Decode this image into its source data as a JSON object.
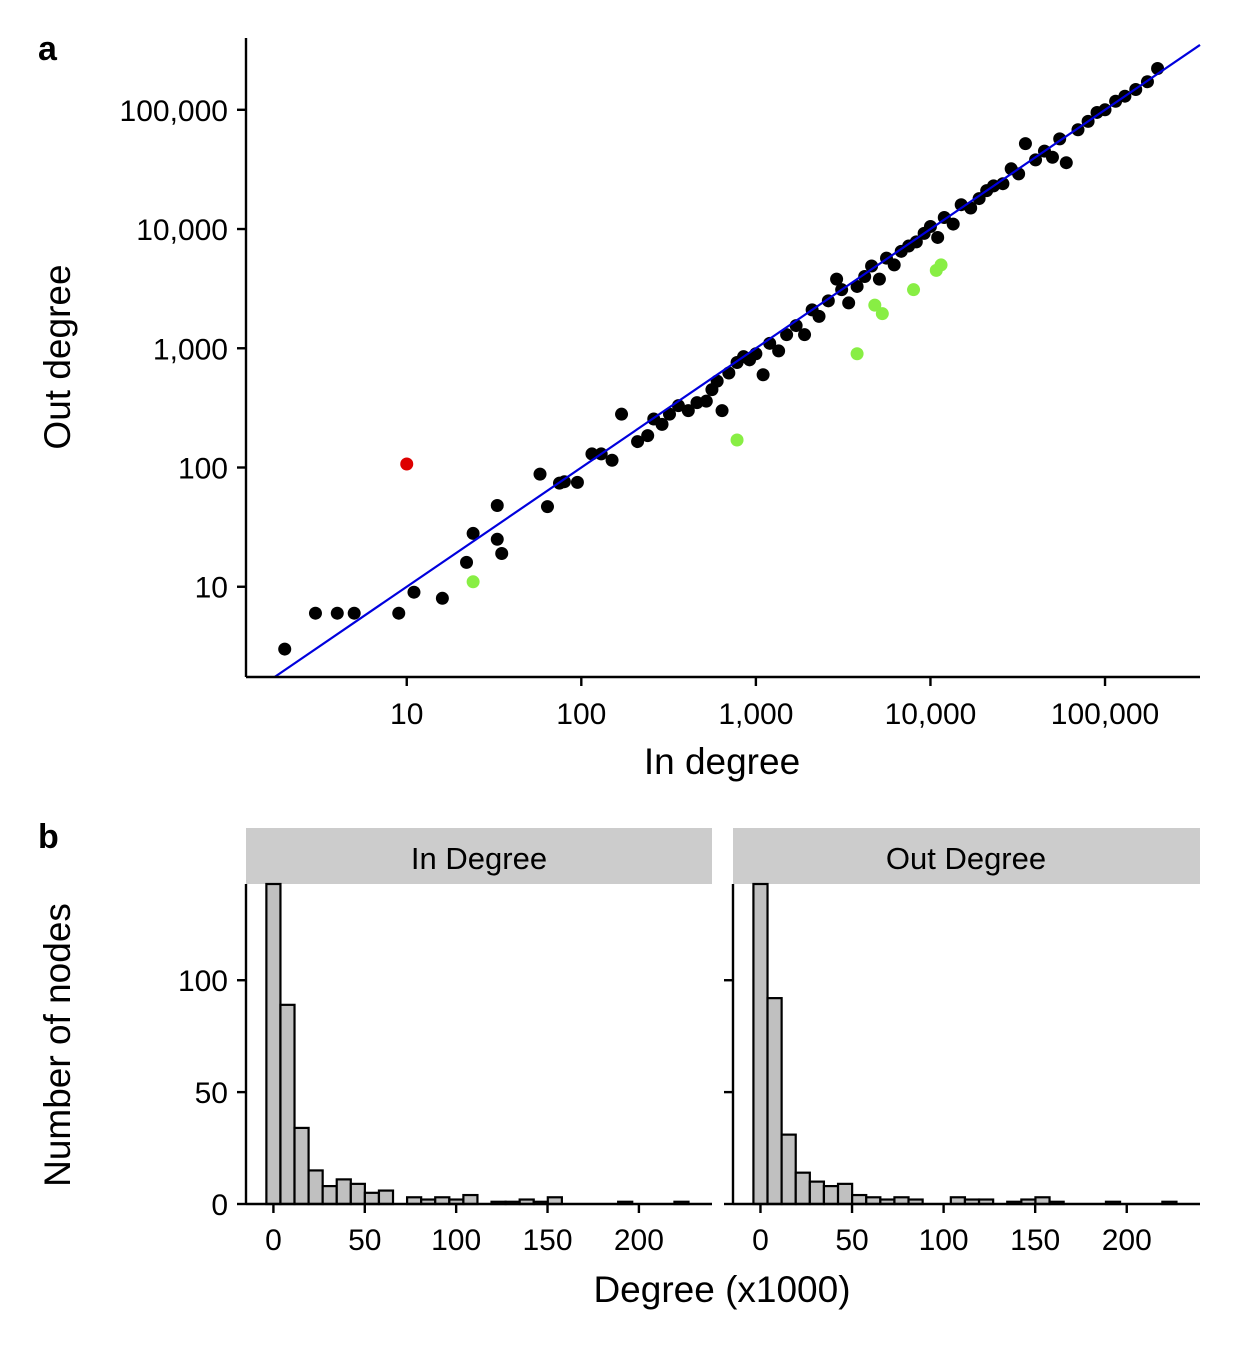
{
  "panels": {
    "a": {
      "label": "a"
    },
    "b": {
      "label": "b"
    }
  },
  "chart_data": [
    {
      "type": "scatter",
      "panel": "a",
      "xlabel": "In degree",
      "ylabel": "Out degree",
      "xscale": "log10",
      "yscale": "log10",
      "xlim": [
        1.2,
        350000
      ],
      "ylim": [
        1.75,
        400000
      ],
      "xticks": [
        10,
        100,
        1000,
        10000,
        100000
      ],
      "xtick_labels": [
        "10",
        "100",
        "1,000",
        "10,000",
        "100,000"
      ],
      "yticks": [
        10,
        100,
        1000,
        10000,
        100000
      ],
      "ytick_labels": [
        "10",
        "100",
        "1,000",
        "10,000",
        "100,000"
      ],
      "grid": false,
      "legend": "none",
      "fit_line": {
        "slope": 1,
        "intercept": 0,
        "color": "#0000dd"
      },
      "series": [
        {
          "color": "#000000",
          "points": [
            [
              2,
              3
            ],
            [
              3,
              6
            ],
            [
              4,
              6
            ],
            [
              5,
              6
            ],
            [
              9,
              6
            ],
            [
              11,
              9
            ],
            [
              16,
              8
            ],
            [
              22,
              16
            ],
            [
              24,
              28
            ],
            [
              33,
              48
            ],
            [
              33,
              25
            ],
            [
              35,
              19
            ],
            [
              58,
              88
            ],
            [
              64,
              47
            ],
            [
              75,
              74
            ],
            [
              80,
              76
            ],
            [
              95,
              75
            ],
            [
              115,
              130
            ],
            [
              130,
              130
            ],
            [
              150,
              115
            ],
            [
              170,
              280
            ],
            [
              210,
              165
            ],
            [
              240,
              185
            ],
            [
              260,
              255
            ],
            [
              290,
              230
            ],
            [
              320,
              280
            ],
            [
              360,
              330
            ],
            [
              410,
              300
            ],
            [
              460,
              350
            ],
            [
              520,
              360
            ],
            [
              560,
              450
            ],
            [
              600,
              530
            ],
            [
              640,
              300
            ],
            [
              700,
              620
            ],
            [
              780,
              760
            ],
            [
              850,
              850
            ],
            [
              920,
              800
            ],
            [
              1000,
              900
            ],
            [
              1100,
              600
            ],
            [
              1200,
              1100
            ],
            [
              1350,
              950
            ],
            [
              1500,
              1300
            ],
            [
              1700,
              1550
            ],
            [
              1900,
              1300
            ],
            [
              2100,
              2100
            ],
            [
              2300,
              1850
            ],
            [
              2600,
              2500
            ],
            [
              2900,
              3800
            ],
            [
              3100,
              3100
            ],
            [
              3400,
              2400
            ],
            [
              3800,
              3300
            ],
            [
              4200,
              4000
            ],
            [
              4600,
              4900
            ],
            [
              5100,
              3800
            ],
            [
              5600,
              5700
            ],
            [
              6200,
              5000
            ],
            [
              6800,
              6500
            ],
            [
              7500,
              7200
            ],
            [
              8300,
              7800
            ],
            [
              9200,
              9200
            ],
            [
              10000,
              10500
            ],
            [
              11000,
              8500
            ],
            [
              12000,
              12500
            ],
            [
              13500,
              11000
            ],
            [
              15000,
              16000
            ],
            [
              17000,
              15000
            ],
            [
              19000,
              18000
            ],
            [
              21000,
              21000
            ],
            [
              23000,
              23000
            ],
            [
              26000,
              24000
            ],
            [
              29000,
              32000
            ],
            [
              32000,
              29000
            ],
            [
              35000,
              52000
            ],
            [
              40000,
              38000
            ],
            [
              45000,
              45000
            ],
            [
              50000,
              40000
            ],
            [
              55000,
              57000
            ],
            [
              60000,
              36000
            ],
            [
              70000,
              68000
            ],
            [
              80000,
              80000
            ],
            [
              90000,
              95000
            ],
            [
              100000,
              100000
            ],
            [
              115000,
              118000
            ],
            [
              130000,
              130000
            ],
            [
              150000,
              148000
            ],
            [
              175000,
              172000
            ],
            [
              200000,
              222000
            ]
          ]
        },
        {
          "color": "#88ee44",
          "points": [
            [
              24,
              11
            ],
            [
              780,
              170
            ],
            [
              3800,
              900
            ],
            [
              4800,
              2300
            ],
            [
              5300,
              1950
            ],
            [
              8000,
              3100
            ],
            [
              10800,
              4500
            ],
            [
              11500,
              5000
            ]
          ]
        },
        {
          "color": "#dd0000",
          "points": [
            [
              10,
              107
            ]
          ]
        }
      ]
    },
    {
      "type": "bar",
      "panel": "b-left",
      "facet_title": "In Degree",
      "ylabel": "Number of nodes",
      "xlim": [
        -15,
        240
      ],
      "ylim": [
        0,
        143
      ],
      "xticks": [
        0,
        50,
        100,
        150,
        200
      ],
      "xtick_labels": [
        "0",
        "50",
        "100",
        "150",
        "200"
      ],
      "yticks": [
        0,
        50,
        100
      ],
      "ytick_labels": [
        "0",
        "50",
        "100"
      ],
      "bin_width": 7.7,
      "bin_start": -3.85,
      "bar_color": "#c0c0c0",
      "values": [
        143,
        89,
        34,
        15,
        8,
        11,
        9,
        5,
        6,
        0,
        3,
        2,
        3,
        2,
        4,
        0,
        1,
        1,
        2,
        1,
        3,
        0,
        0,
        0,
        0,
        1,
        0,
        0,
        0,
        1
      ]
    },
    {
      "type": "bar",
      "panel": "b-right",
      "facet_title": "Out Degree",
      "xlim": [
        -15,
        240
      ],
      "ylim": [
        0,
        143
      ],
      "xticks": [
        0,
        50,
        100,
        150,
        200
      ],
      "xtick_labels": [
        "0",
        "50",
        "100",
        "150",
        "200"
      ],
      "yticks": [
        0,
        50,
        100
      ],
      "bin_width": 7.7,
      "bin_start": -3.85,
      "bar_color": "#c0c0c0",
      "values": [
        143,
        92,
        31,
        14,
        10,
        8,
        9,
        4,
        3,
        2,
        3,
        2,
        0,
        0,
        3,
        2,
        2,
        0,
        1,
        2,
        3,
        1,
        0,
        0,
        0,
        1,
        0,
        0,
        0,
        1
      ]
    }
  ],
  "shared": {
    "hist_xlabel": "Degree (x1000)"
  }
}
